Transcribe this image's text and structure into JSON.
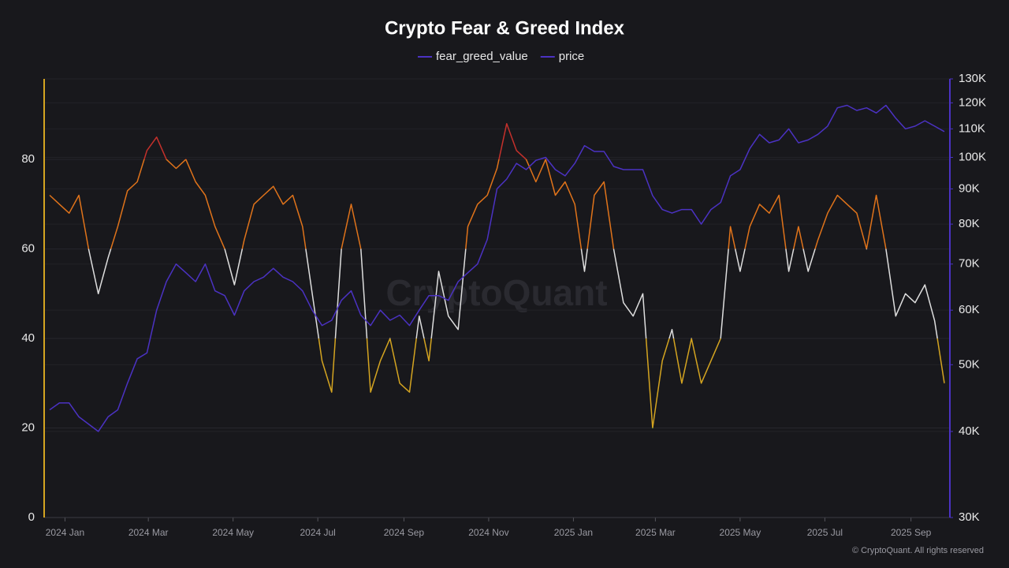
{
  "chart_data": {
    "type": "line",
    "title": "Crypto Fear & Greed Index",
    "watermark": "CryptoQuant",
    "footer": "© CryptoQuant. All rights reserved",
    "legend": "top",
    "x": [
      -11,
      -4,
      3,
      10,
      17,
      24,
      31,
      38,
      45,
      52,
      59,
      66,
      73,
      80,
      87,
      94,
      101,
      108,
      115,
      122,
      129,
      136,
      143,
      150,
      157,
      164,
      171,
      178,
      185,
      192,
      199,
      206,
      213,
      220,
      227,
      234,
      241,
      248,
      255,
      262,
      269,
      276,
      283,
      290,
      297,
      304,
      311,
      318,
      325,
      332,
      339,
      346,
      353,
      360,
      367,
      374,
      381,
      388,
      395,
      402,
      409,
      416,
      423,
      430,
      437,
      444,
      451,
      458,
      465,
      472,
      479,
      486,
      493,
      500,
      507,
      514,
      521,
      528,
      535,
      542,
      549,
      556,
      563,
      570,
      577,
      584,
      591,
      598,
      605,
      612,
      619,
      626,
      633
    ],
    "xlim": [
      -15,
      637
    ],
    "xticks": [
      {
        "value": 0,
        "label": "2024 Jan"
      },
      {
        "value": 60,
        "label": "2024 Mar"
      },
      {
        "value": 121,
        "label": "2024 May"
      },
      {
        "value": 182,
        "label": "2024 Jul"
      },
      {
        "value": 244,
        "label": "2024 Sep"
      },
      {
        "value": 305,
        "label": "2024 Nov"
      },
      {
        "value": 366,
        "label": "2025 Jan"
      },
      {
        "value": 425,
        "label": "2025 Mar"
      },
      {
        "value": 486,
        "label": "2025 May"
      },
      {
        "value": 547,
        "label": "2025 Jul"
      },
      {
        "value": 609,
        "label": "2025 Sep"
      }
    ],
    "ylim": [
      0,
      98
    ],
    "yticks": [
      0,
      20,
      40,
      60,
      80
    ],
    "y2lim": [
      30000,
      130000
    ],
    "y2log": true,
    "y2ticks": [
      {
        "value": 30000,
        "label": "30K"
      },
      {
        "value": 40000,
        "label": "40K"
      },
      {
        "value": 50000,
        "label": "50K"
      },
      {
        "value": 60000,
        "label": "60K"
      },
      {
        "value": 70000,
        "label": "70K"
      },
      {
        "value": 80000,
        "label": "80K"
      },
      {
        "value": 90000,
        "label": "90K"
      },
      {
        "value": 100000,
        "label": "100K"
      },
      {
        "value": 110000,
        "label": "110K"
      },
      {
        "value": 120000,
        "label": "120K"
      },
      {
        "value": 130000,
        "label": "130K"
      }
    ],
    "grid": true,
    "color_zones": [
      {
        "from": 80,
        "to": 100,
        "color": "#c4302b"
      },
      {
        "from": 60,
        "to": 80,
        "color": "#e0731a"
      },
      {
        "from": 40,
        "to": 60,
        "color": "#dedede"
      },
      {
        "from": 20,
        "to": 40,
        "color": "#d4a420"
      },
      {
        "from": 0,
        "to": 20,
        "color": "#2e9a2a"
      }
    ],
    "series": [
      {
        "name": "fear_greed_value",
        "color": "#4b32c3",
        "values": [
          72,
          70,
          68,
          72,
          60,
          50,
          58,
          65,
          73,
          75,
          82,
          85,
          80,
          78,
          80,
          75,
          72,
          65,
          60,
          52,
          62,
          70,
          72,
          74,
          70,
          72,
          65,
          50,
          35,
          28,
          60,
          70,
          60,
          28,
          35,
          40,
          30,
          28,
          45,
          35,
          55,
          45,
          42,
          65,
          70,
          72,
          78,
          88,
          82,
          80,
          75,
          80,
          72,
          75,
          70,
          55,
          72,
          75,
          60,
          48,
          45,
          50,
          20,
          35,
          42,
          30,
          40,
          30,
          35,
          40,
          65,
          55,
          65,
          70,
          68,
          72,
          55,
          65,
          55,
          62,
          68,
          72,
          70,
          68,
          60,
          72,
          60,
          45,
          50,
          48,
          52,
          44,
          30
        ]
      },
      {
        "name": "price",
        "color": "#4b32c3",
        "axis": "y2",
        "values": [
          43000,
          44000,
          44000,
          42000,
          41000,
          40000,
          42000,
          43000,
          47000,
          51000,
          52000,
          60000,
          66000,
          70000,
          68000,
          66000,
          70000,
          64000,
          63000,
          59000,
          64000,
          66000,
          67000,
          69000,
          67000,
          66000,
          64000,
          60000,
          57000,
          58000,
          62000,
          64000,
          59000,
          57000,
          60000,
          58000,
          59000,
          57000,
          60000,
          63000,
          63000,
          62000,
          66000,
          68000,
          70000,
          76000,
          90000,
          93000,
          98000,
          96000,
          99000,
          100000,
          96000,
          94000,
          98000,
          104000,
          102000,
          102000,
          97000,
          96000,
          96000,
          96000,
          88000,
          84000,
          83000,
          84000,
          84000,
          80000,
          84000,
          86000,
          94000,
          96000,
          103000,
          108000,
          105000,
          106000,
          110000,
          105000,
          106000,
          108000,
          111000,
          118000,
          119000,
          117000,
          118000,
          116000,
          119000,
          114000,
          110000,
          111000,
          113000,
          111000,
          109000
        ]
      }
    ]
  }
}
